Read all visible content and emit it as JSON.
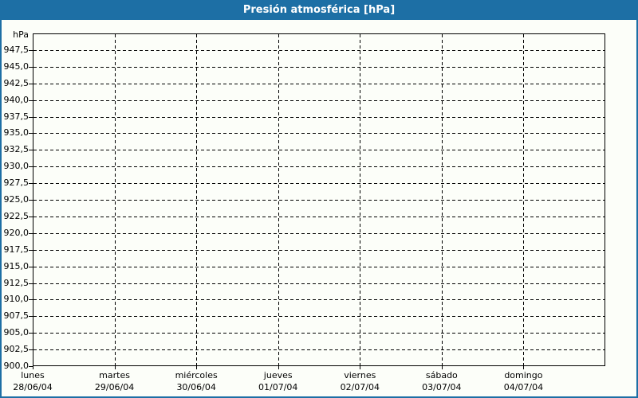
{
  "window": {
    "title": "Presión atmosférica [hPa]"
  },
  "colors": {
    "title_bar": "#1D6FA5",
    "frame_border": "#1D6FA5",
    "title_text": "#FFFFFF",
    "background": "#FCFEF9",
    "plot_border": "#000000",
    "gridline": "#000000",
    "axis_text": "#000000"
  },
  "chart_data": {
    "type": "line",
    "title": "Presión atmosférica [hPa]",
    "legend": "none",
    "grid": {
      "style": "dashed",
      "horizontal_line_values": [
        947.5,
        945.0,
        942.5,
        940.0,
        937.5,
        935.0,
        932.5,
        930.0,
        927.5,
        925.0,
        922.5,
        920.0,
        917.5,
        915.0,
        912.5,
        910.0,
        907.5,
        905.0,
        902.5
      ],
      "vertical_lines_at": [
        "martes",
        "miércoles",
        "jueves",
        "viernes",
        "sábado",
        "domingo"
      ]
    },
    "y_axis": {
      "unit_label": "hPa",
      "min": 900,
      "max": 950,
      "tick_step": 2.5,
      "decimal_separator": ",",
      "tick_values": [
        947.5,
        945.0,
        942.5,
        940.0,
        937.5,
        935.0,
        932.5,
        930.0,
        927.5,
        925.0,
        922.5,
        920.0,
        917.5,
        915.0,
        912.5,
        910.0,
        907.5,
        905.0,
        902.5,
        900.0
      ],
      "tick_labels": [
        "947,5",
        "945,0",
        "942,5",
        "940,0",
        "937,5",
        "935,0",
        "932,5",
        "930,0",
        "927,5",
        "925,0",
        "922,5",
        "920,0",
        "917,5",
        "915,0",
        "912,5",
        "910,0",
        "907,5",
        "905,0",
        "902,5",
        "900,0"
      ]
    },
    "x_axis": {
      "categories": [
        {
          "day": "lunes",
          "date": "28/06/04"
        },
        {
          "day": "martes",
          "date": "29/06/04"
        },
        {
          "day": "miércoles",
          "date": "30/06/04"
        },
        {
          "day": "jueves",
          "date": "01/07/04"
        },
        {
          "day": "viernes",
          "date": "02/07/04"
        },
        {
          "day": "sábado",
          "date": "03/07/04"
        },
        {
          "day": "domingo",
          "date": "04/07/04"
        }
      ]
    },
    "series": []
  }
}
